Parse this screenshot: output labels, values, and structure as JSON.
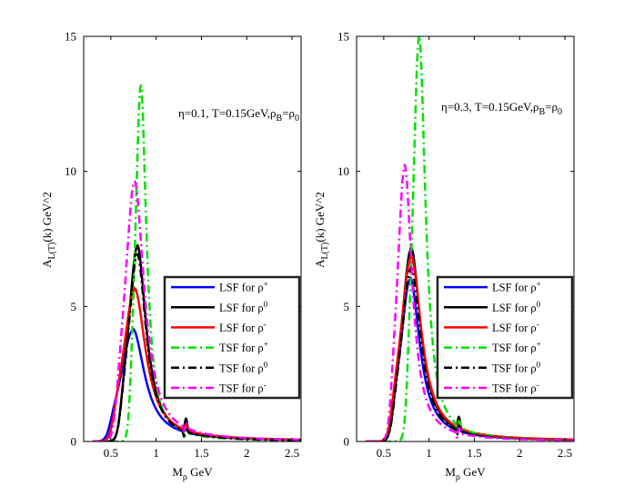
{
  "chart_data": [
    {
      "type": "line",
      "annotation": {
        "text": "η=0.1, T=0.15GeV,ρ",
        "sub": "B",
        "eq": "=ρ",
        "sub2": "0"
      },
      "xlabel": {
        "main": "M",
        "sub": "ρ",
        "unit": " GeV"
      },
      "ylabel": {
        "main": "A",
        "sub": "L(T)",
        "rest": "(k) GeV^2"
      },
      "xlim": [
        0.2,
        2.6
      ],
      "ylim": [
        0,
        15
      ],
      "xticks": [
        "0.5",
        "1",
        "1.5",
        "2",
        "2.5"
      ],
      "xtick_values": [
        0.5,
        1,
        1.5,
        2,
        2.5
      ],
      "yticks": [
        "0",
        "5",
        "10",
        "15"
      ],
      "ytick_values": [
        0,
        5,
        10,
        15
      ],
      "series": [
        {
          "name": "LSF for ρ",
          "sup": "+",
          "color": "#0000ff",
          "dash": "solid",
          "peak": 4.1,
          "m0": 0.74,
          "width": 0.16
        },
        {
          "name": "LSF for ρ",
          "sup": "0",
          "color": "#000000",
          "dash": "solid",
          "peak": 7.2,
          "m0": 0.79,
          "width": 0.12
        },
        {
          "name": "LSF for ρ",
          "sup": "-",
          "color": "#ff0000",
          "dash": "solid",
          "peak": 5.6,
          "m0": 0.76,
          "width": 0.15
        },
        {
          "name": "TSF for ρ",
          "sup": "+",
          "color": "#00e000",
          "dash": "dashdot",
          "peak": 13.2,
          "m0": 0.83,
          "width": 0.075
        },
        {
          "name": "TSF for ρ",
          "sup": "0",
          "color": "#000000",
          "dash": "dashdot",
          "peak": 6.9,
          "m0": 0.79,
          "width": 0.12
        },
        {
          "name": "TSF for ρ",
          "sup": "-",
          "color": "#ff00ff",
          "dash": "dashdot",
          "peak": 9.6,
          "m0": 0.76,
          "width": 0.13
        }
      ]
    },
    {
      "type": "line",
      "annotation": {
        "text": "η=0.3, T=0.15GeV,ρ",
        "sub": "B",
        "eq": "=ρ",
        "sub2": "0"
      },
      "xlabel": {
        "main": "M",
        "sub": "ρ",
        "unit": " GeV"
      },
      "ylabel": {
        "main": "A",
        "sub": "L(T)",
        "rest": "(k) GeV^2"
      },
      "xlim": [
        0.2,
        2.6
      ],
      "ylim": [
        0,
        15
      ],
      "xticks": [
        "0.5",
        "1",
        "1.5",
        "2",
        "2.5"
      ],
      "xtick_values": [
        0.5,
        1,
        1.5,
        2,
        2.5
      ],
      "yticks": [
        "0",
        "5",
        "10",
        "15"
      ],
      "ytick_values": [
        0,
        5,
        10,
        15
      ],
      "series": [
        {
          "name": "LSF for ρ",
          "sup": "+",
          "color": "#0000ff",
          "dash": "solid",
          "peak": 6.0,
          "m0": 0.79,
          "width": 0.13
        },
        {
          "name": "LSF for ρ",
          "sup": "0",
          "color": "#000000",
          "dash": "solid",
          "peak": 7.1,
          "m0": 0.8,
          "width": 0.13
        },
        {
          "name": "LSF for ρ",
          "sup": "-",
          "color": "#ff0000",
          "dash": "solid",
          "peak": 6.8,
          "m0": 0.8,
          "width": 0.14
        },
        {
          "name": "TSF for ρ",
          "sup": "+",
          "color": "#00e000",
          "dash": "dashdot",
          "peak": 15.0,
          "m0": 0.89,
          "width": 0.085
        },
        {
          "name": "TSF for ρ",
          "sup": "0",
          "color": "#000000",
          "dash": "dashdot",
          "peak": 6.4,
          "m0": 0.8,
          "width": 0.13
        },
        {
          "name": "TSF for ρ",
          "sup": "-",
          "color": "#ff00ff",
          "dash": "dashdot",
          "peak": 10.2,
          "m0": 0.73,
          "width": 0.1
        }
      ]
    }
  ]
}
